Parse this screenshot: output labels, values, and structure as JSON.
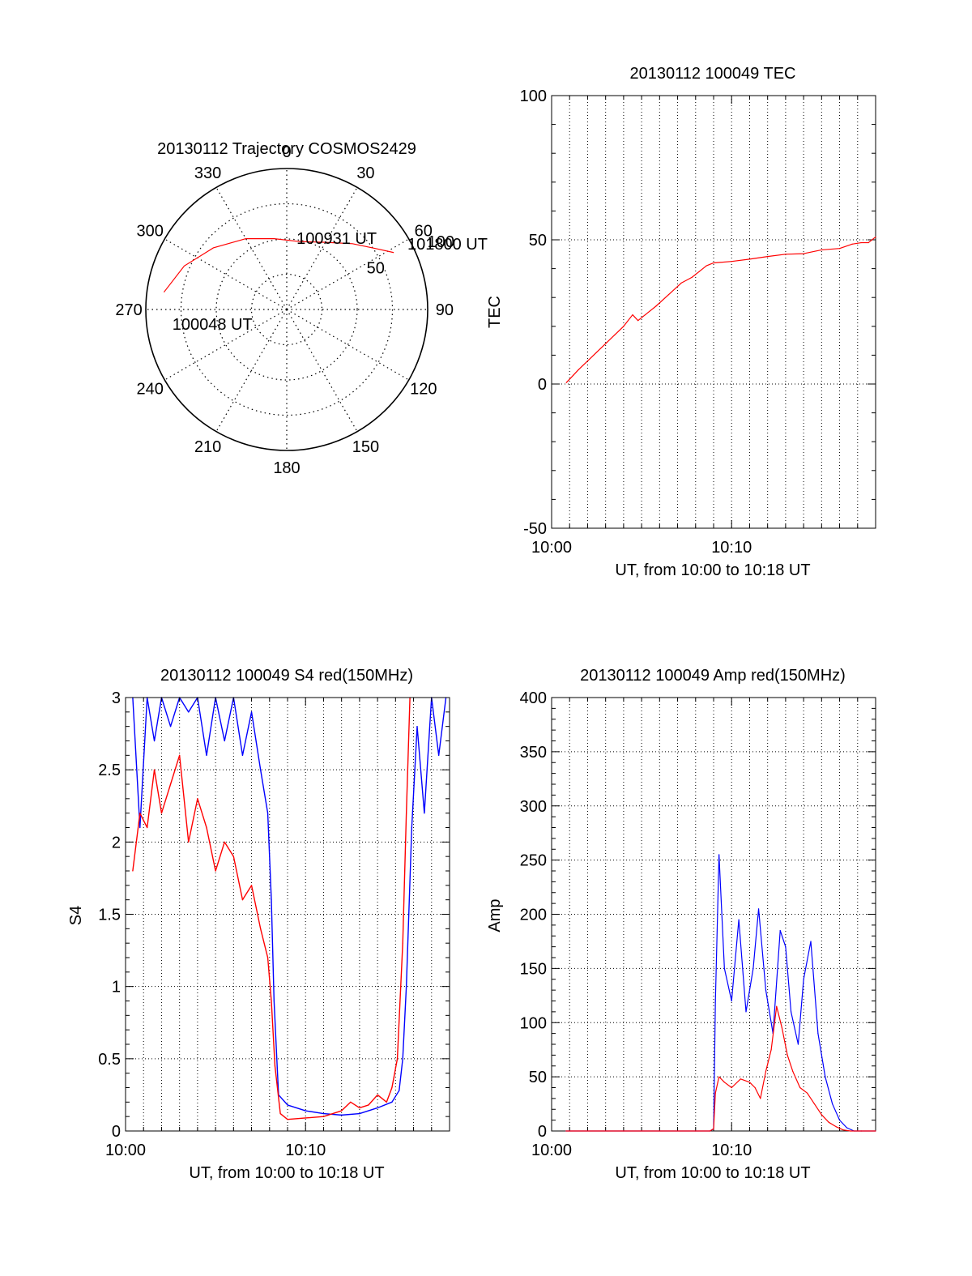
{
  "colors": {
    "red": "#ff0000",
    "blue": "#0000ff",
    "black": "#000000"
  },
  "chart_data": [
    {
      "id": "polar",
      "type": "scatter",
      "title": "20130112 Trajectory COSMOS2429",
      "azimuth_labels": [
        {
          "az": 0,
          "text": "0"
        },
        {
          "az": 30,
          "text": "30"
        },
        {
          "az": 60,
          "text": "60"
        },
        {
          "az": 90,
          "text": "90"
        },
        {
          "az": 120,
          "text": "120"
        },
        {
          "az": 150,
          "text": "150"
        },
        {
          "az": 180,
          "text": "180"
        },
        {
          "az": 210,
          "text": "210"
        },
        {
          "az": 240,
          "text": "240"
        },
        {
          "az": 270,
          "text": "270"
        },
        {
          "az": 300,
          "text": "300"
        },
        {
          "az": 330,
          "text": "330"
        }
      ],
      "radial_labels": [
        {
          "r": 50,
          "text": "50"
        },
        {
          "r": 100,
          "text": "100"
        }
      ],
      "annotations": [
        {
          "text": "101800 UT",
          "az": 62,
          "r": 97
        },
        {
          "text": "100931 UT",
          "az": 8,
          "r": 50
        },
        {
          "text": "100048 UT",
          "az": 262,
          "r": 82
        }
      ],
      "series": [
        {
          "color": "red",
          "points": [
            [
              278,
              88
            ],
            [
              293,
              79
            ],
            [
              310,
              68
            ],
            [
              330,
              58
            ],
            [
              350,
              51
            ],
            [
              10,
              49
            ],
            [
              30,
              55
            ],
            [
              45,
              66
            ],
            [
              56,
              77
            ],
            [
              62,
              86
            ]
          ]
        }
      ]
    },
    {
      "id": "tec",
      "type": "line",
      "title": "20130112 100049 TEC",
      "xlabel": "UT, from 10:00 to 10:18 UT",
      "ylabel": "TEC",
      "xlim": [
        0,
        18
      ],
      "ylim": [
        -50,
        100
      ],
      "xticks": [
        {
          "v": 0,
          "text": "10:00"
        },
        {
          "v": 10,
          "text": "10:10"
        }
      ],
      "yticks": [
        {
          "v": -50,
          "text": "-50"
        },
        {
          "v": 0,
          "text": "0"
        },
        {
          "v": 50,
          "text": "50"
        },
        {
          "v": 100,
          "text": "100"
        }
      ],
      "grid": true,
      "series": [
        {
          "color": "red",
          "x": [
            0.82,
            1.2,
            1.5,
            2.0,
            2.5,
            3.0,
            3.5,
            4.0,
            4.5,
            4.8,
            5.2,
            5.8,
            6.5,
            7.2,
            7.8,
            8.2,
            8.6,
            9.0,
            10.0,
            11.0,
            12.0,
            13.0,
            14.0,
            15.0,
            16.0,
            16.7,
            17.2,
            17.6,
            18.0
          ],
          "y": [
            0.5,
            3,
            5,
            8,
            11,
            14,
            17,
            20,
            24,
            22,
            24,
            27,
            31,
            35,
            37,
            39,
            41,
            42,
            42.5,
            43.3,
            44.2,
            45,
            45.2,
            46.5,
            47,
            48.5,
            49,
            49,
            51
          ]
        }
      ]
    },
    {
      "id": "s4",
      "type": "line",
      "title": "20130112 100049 S4 red(150MHz)",
      "xlabel": "UT, from 10:00 to 10:18 UT",
      "ylabel": "S4",
      "xlim": [
        0,
        18
      ],
      "ylim": [
        0,
        3
      ],
      "xticks": [
        {
          "v": 0,
          "text": "10:00"
        },
        {
          "v": 10,
          "text": "10:10"
        }
      ],
      "yticks": [
        {
          "v": 0,
          "text": "0"
        },
        {
          "v": 0.5,
          "text": "0.5"
        },
        {
          "v": 1,
          "text": "1"
        },
        {
          "v": 1.5,
          "text": "1.5"
        },
        {
          "v": 2,
          "text": "2"
        },
        {
          "v": 2.5,
          "text": "2.5"
        },
        {
          "v": 3,
          "text": "3"
        }
      ],
      "grid": true,
      "series": [
        {
          "color": "blue",
          "x": [
            0.4,
            0.8,
            1.2,
            1.6,
            2.0,
            2.5,
            3.0,
            3.5,
            4.0,
            4.5,
            5.0,
            5.5,
            6.0,
            6.5,
            7.0,
            7.5,
            7.9,
            8.1,
            8.25,
            8.5,
            9.0,
            10.0,
            11.0,
            12.0,
            13.0,
            14.0,
            14.8,
            15.2,
            15.4,
            15.6,
            15.9,
            16.2,
            16.6,
            17.0,
            17.4,
            17.8
          ],
          "y": [
            3,
            2.1,
            3,
            2.7,
            3,
            2.8,
            3,
            2.9,
            3,
            2.6,
            3,
            2.7,
            3,
            2.6,
            2.9,
            2.5,
            2.2,
            1.6,
            0.9,
            0.25,
            0.18,
            0.14,
            0.12,
            0.11,
            0.12,
            0.16,
            0.2,
            0.28,
            0.5,
            1.0,
            2.1,
            2.8,
            2.2,
            3,
            2.6,
            3
          ]
        },
        {
          "color": "red",
          "x": [
            0.4,
            0.8,
            1.2,
            1.6,
            2.0,
            2.5,
            3.0,
            3.5,
            4.0,
            4.5,
            5.0,
            5.5,
            6.0,
            6.5,
            7.0,
            7.5,
            7.9,
            8.1,
            8.3,
            8.6,
            9.0,
            10.0,
            11.0,
            12.0,
            12.5,
            13.0,
            13.5,
            14.0,
            14.5,
            14.8,
            15.1,
            15.4,
            15.6,
            15.8
          ],
          "y": [
            1.8,
            2.2,
            2.1,
            2.5,
            2.2,
            2.4,
            2.6,
            2.0,
            2.3,
            2.1,
            1.8,
            2.0,
            1.9,
            1.6,
            1.7,
            1.4,
            1.2,
            0.9,
            0.45,
            0.12,
            0.08,
            0.09,
            0.1,
            0.14,
            0.2,
            0.16,
            0.18,
            0.25,
            0.2,
            0.3,
            0.5,
            1.3,
            2.2,
            3
          ]
        }
      ]
    },
    {
      "id": "amp",
      "type": "line",
      "title": "20130112 100049 Amp red(150MHz)",
      "xlabel": "UT, from 10:00 to 10:18 UT",
      "ylabel": "Amp",
      "xlim": [
        0,
        18
      ],
      "ylim": [
        0,
        400
      ],
      "xticks": [
        {
          "v": 0,
          "text": "10:00"
        },
        {
          "v": 10,
          "text": "10:10"
        }
      ],
      "yticks": [
        {
          "v": 0,
          "text": "0"
        },
        {
          "v": 50,
          "text": "50"
        },
        {
          "v": 100,
          "text": "100"
        },
        {
          "v": 150,
          "text": "150"
        },
        {
          "v": 200,
          "text": "200"
        },
        {
          "v": 250,
          "text": "250"
        },
        {
          "v": 300,
          "text": "300"
        },
        {
          "v": 350,
          "text": "350"
        },
        {
          "v": 400,
          "text": "400"
        }
      ],
      "grid": true,
      "series": [
        {
          "color": "blue",
          "x": [
            0.8,
            4.0,
            8.0,
            8.8,
            9.0,
            9.1,
            9.3,
            9.6,
            10.0,
            10.4,
            10.8,
            11.2,
            11.5,
            11.9,
            12.3,
            12.7,
            13.0,
            13.3,
            13.7,
            14.0,
            14.4,
            14.8,
            15.2,
            15.6,
            16.0,
            16.4,
            16.8,
            17.2,
            18.0
          ],
          "y": [
            0,
            0,
            0,
            0,
            2,
            120,
            255,
            150,
            120,
            195,
            110,
            150,
            205,
            130,
            90,
            185,
            170,
            110,
            80,
            140,
            175,
            90,
            50,
            25,
            10,
            3,
            0,
            0,
            0
          ]
        },
        {
          "color": "red",
          "x": [
            0.8,
            4.0,
            8.0,
            8.8,
            9.0,
            9.1,
            9.3,
            9.6,
            10.0,
            10.5,
            11.0,
            11.3,
            11.6,
            11.9,
            12.2,
            12.5,
            12.8,
            13.1,
            13.4,
            13.8,
            14.2,
            14.6,
            15.0,
            15.4,
            15.8,
            16.2,
            16.6,
            17.2,
            18.0
          ],
          "y": [
            0,
            0,
            0,
            0,
            2,
            35,
            50,
            45,
            40,
            48,
            45,
            40,
            30,
            55,
            75,
            115,
            95,
            70,
            55,
            40,
            35,
            25,
            15,
            8,
            4,
            1,
            0,
            0,
            0
          ]
        }
      ]
    }
  ]
}
